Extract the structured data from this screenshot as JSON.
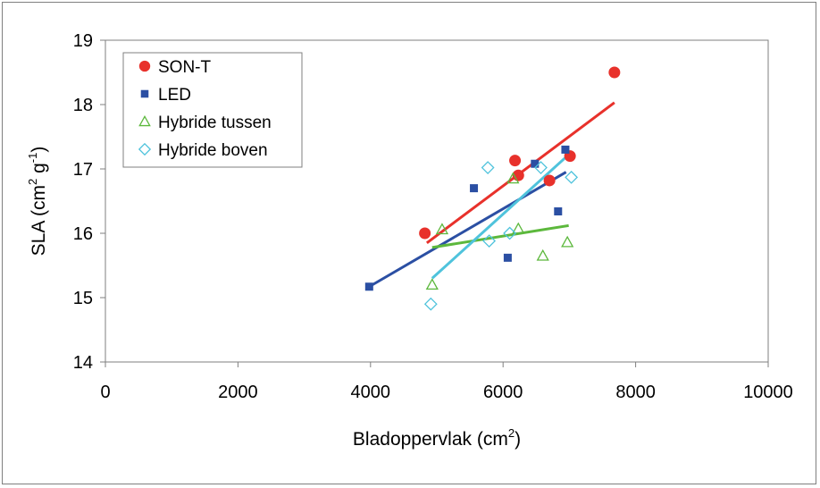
{
  "chart_data": {
    "type": "scatter",
    "title": "",
    "xlabel": "Bladoppervlak (cm",
    "xlabel_sup": "2",
    "xlabel_close": ")",
    "ylabel": "SLA (cm",
    "ylabel_sup1": "2",
    "ylabel_mid": " g",
    "ylabel_sup2": "-1",
    "ylabel_close": ")",
    "xlim": [
      0,
      10000
    ],
    "ylim": [
      14,
      19
    ],
    "xticks": [
      0,
      2000,
      4000,
      6000,
      8000,
      10000
    ],
    "yticks": [
      14,
      15,
      16,
      17,
      18,
      19
    ],
    "grid": false,
    "legend_position": "top-left",
    "series": [
      {
        "name": "SON-T",
        "marker": "circle",
        "color": "#e8312b",
        "points": [
          [
            4820,
            16.0
          ],
          [
            6180,
            17.13
          ],
          [
            6230,
            16.9
          ],
          [
            6700,
            16.82
          ],
          [
            7010,
            17.2
          ],
          [
            7680,
            18.5
          ]
        ],
        "trendline": [
          [
            4850,
            15.85
          ],
          [
            7680,
            18.03
          ]
        ]
      },
      {
        "name": "LED",
        "marker": "square",
        "color": "#2b4fa3",
        "points": [
          [
            3980,
            15.17
          ],
          [
            5560,
            16.7
          ],
          [
            6070,
            15.62
          ],
          [
            6480,
            17.08
          ],
          [
            6830,
            16.34
          ],
          [
            6940,
            17.3
          ]
        ],
        "trendline": [
          [
            3980,
            15.17
          ],
          [
            6950,
            16.95
          ]
        ]
      },
      {
        "name": "Hybride tussen",
        "marker": "triangle",
        "color": "#5cb83c",
        "points": [
          [
            4930,
            15.2
          ],
          [
            5080,
            16.06
          ],
          [
            6150,
            16.85
          ],
          [
            6230,
            16.07
          ],
          [
            6600,
            15.65
          ],
          [
            6970,
            15.86
          ]
        ],
        "trendline": [
          [
            4930,
            15.78
          ],
          [
            6990,
            16.12
          ]
        ]
      },
      {
        "name": "Hybride boven",
        "marker": "diamond",
        "color": "#4fc3dc",
        "points": [
          [
            4910,
            14.9
          ],
          [
            5770,
            17.02
          ],
          [
            5790,
            15.88
          ],
          [
            6100,
            16.0
          ],
          [
            6570,
            17.02
          ],
          [
            7030,
            16.87
          ]
        ],
        "trendline": [
          [
            4930,
            15.3
          ],
          [
            7020,
            17.25
          ]
        ]
      }
    ]
  }
}
